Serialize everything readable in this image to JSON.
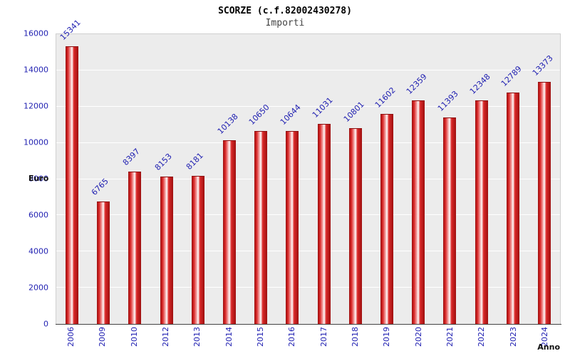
{
  "chart_data": {
    "type": "bar",
    "title": "SCORZE (c.f.82002430278)",
    "subtitle": "Importi",
    "ylabel": "Euro",
    "xlabel": "Anno",
    "categories": [
      "2006",
      "2009",
      "2010",
      "2012",
      "2013",
      "2014",
      "2015",
      "2016",
      "2017",
      "2018",
      "2019",
      "2020",
      "2021",
      "2022",
      "2023",
      "2024"
    ],
    "values": [
      15341,
      6765,
      8397,
      8153,
      8181,
      10138,
      10650,
      10644,
      11031,
      10801,
      11602,
      12359,
      11393,
      12348,
      12789,
      13373
    ],
    "ylim": [
      0,
      16000
    ],
    "ytick_step": 2000,
    "grid": true,
    "legend": "none",
    "bar_color": "#da2828",
    "label_color": "#2222b2",
    "plot_background": "#ececec"
  }
}
